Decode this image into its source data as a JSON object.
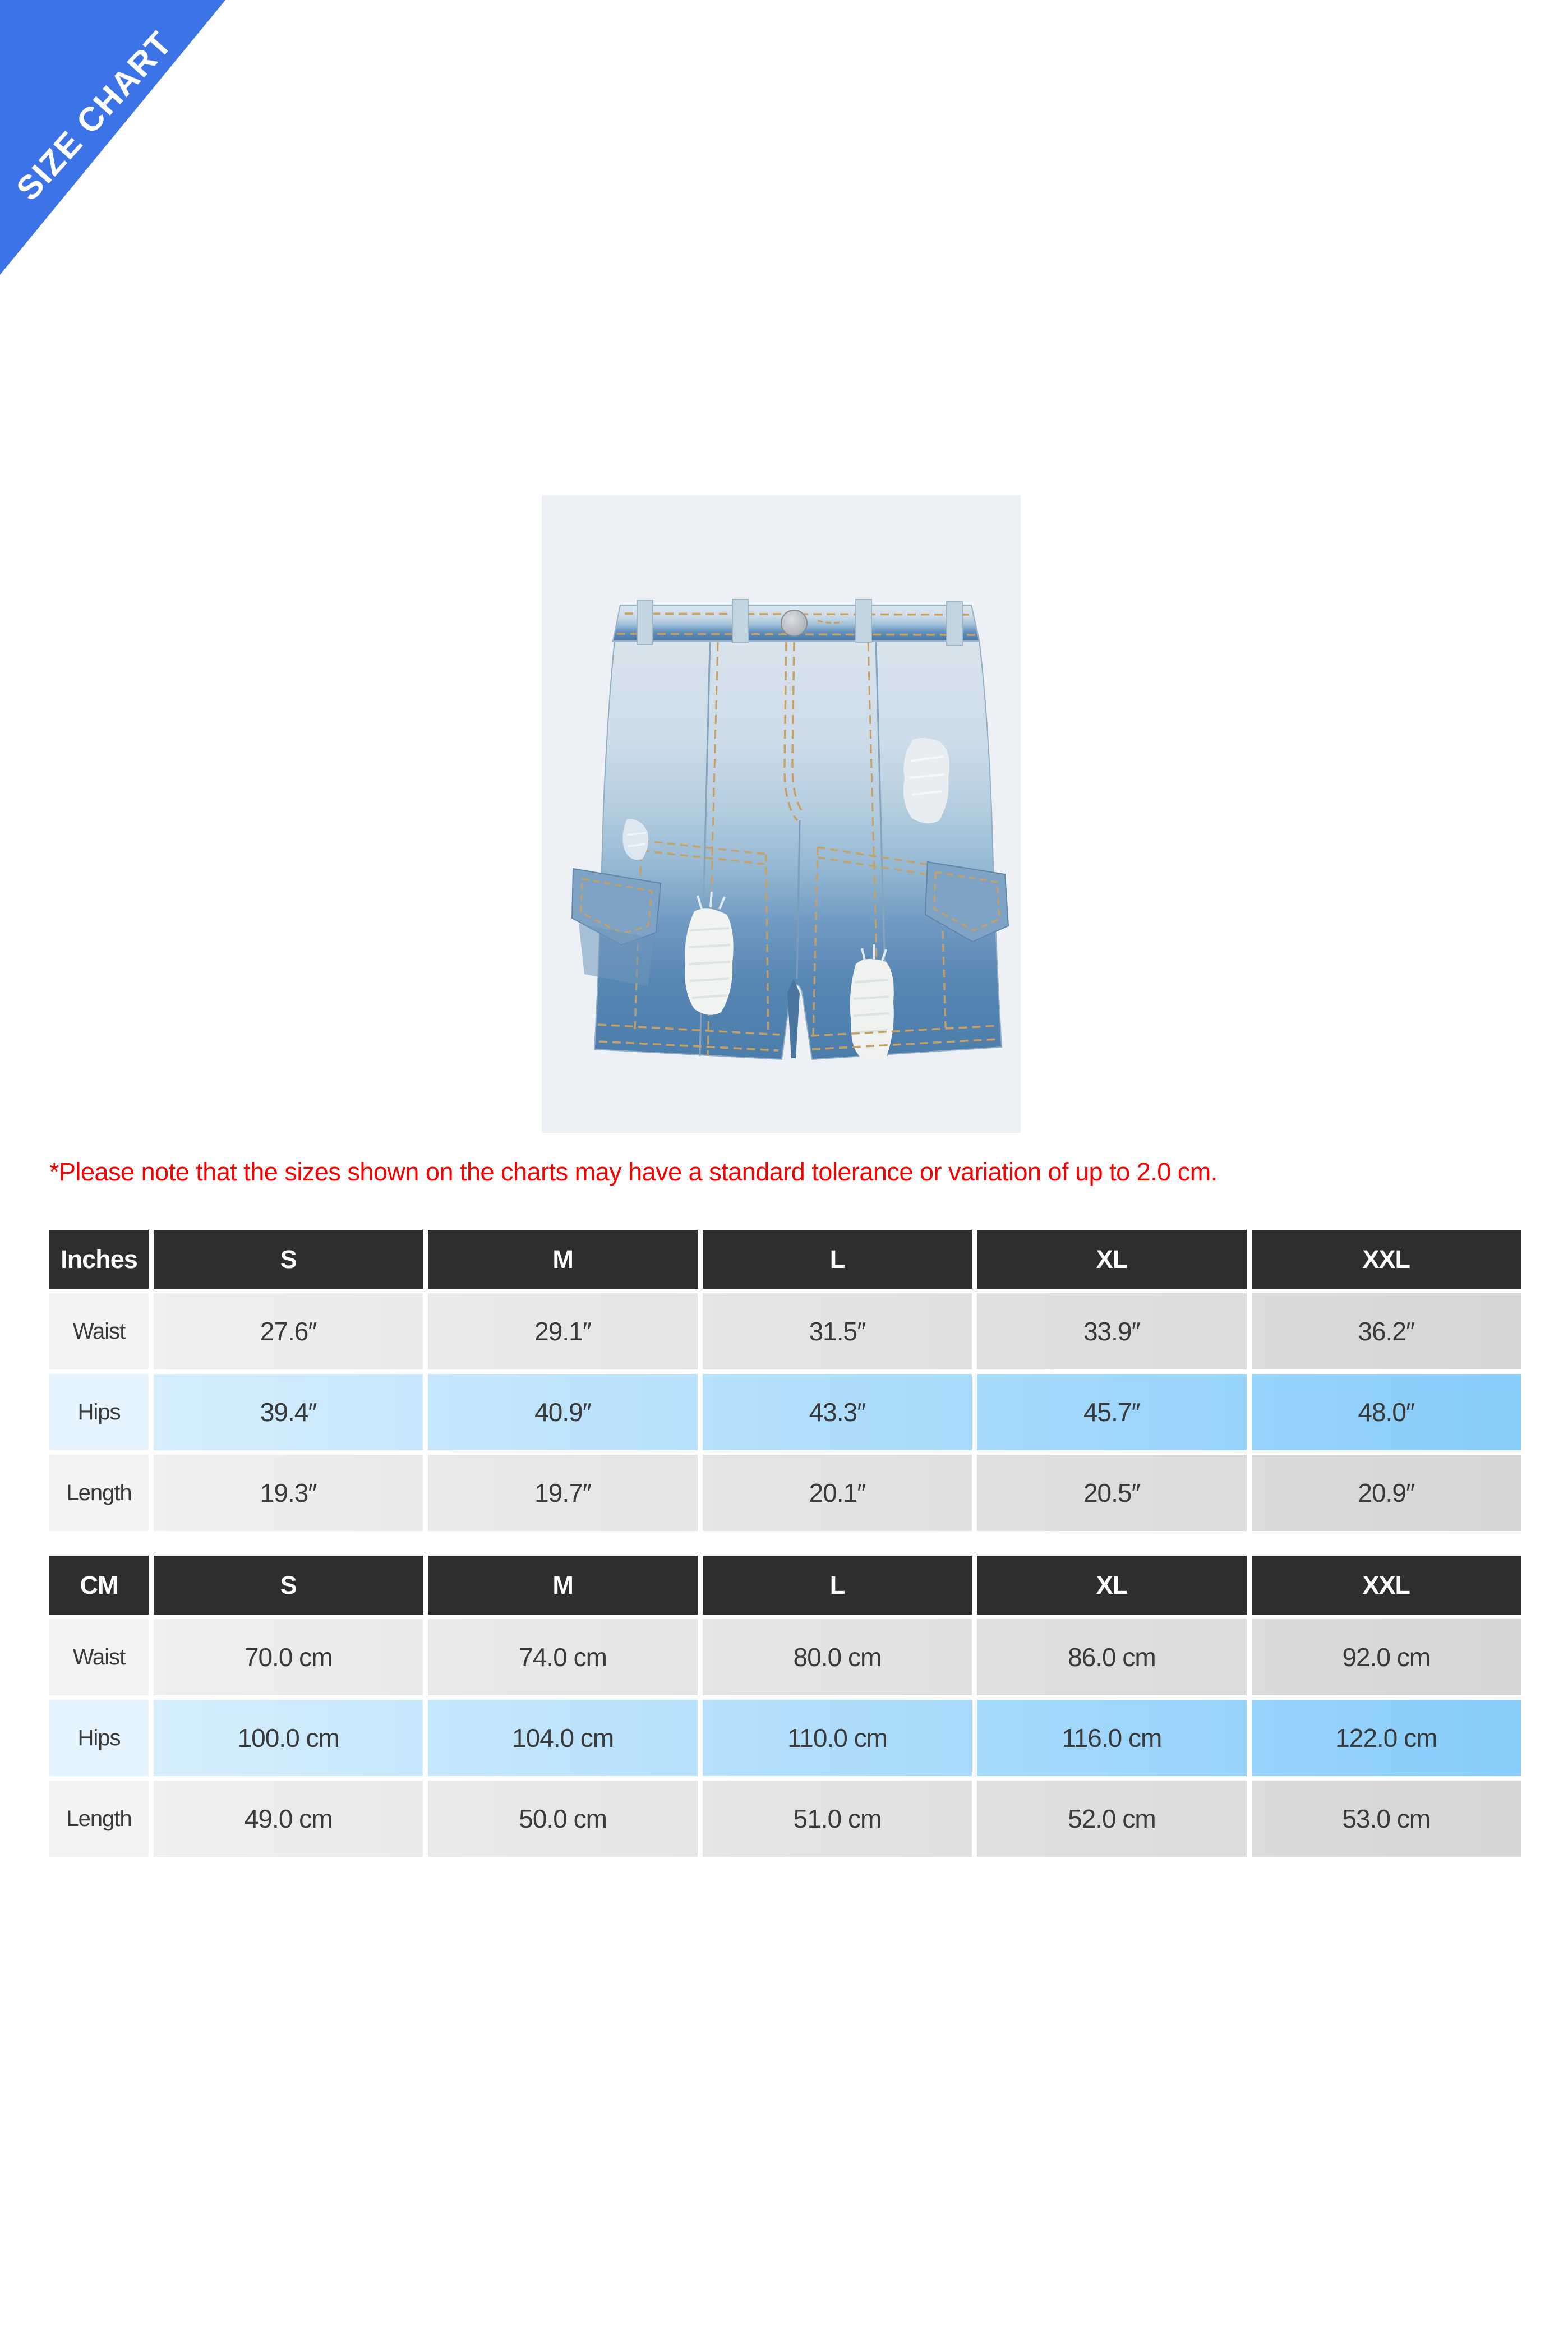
{
  "ribbon": {
    "label": "SIZE CHART"
  },
  "product_image": {
    "name": "distressed-denim-cargo-shorts-photo"
  },
  "note": {
    "text": "*Please note that the sizes shown on the charts may have a standard tolerance or variation of up to 2.0 cm."
  },
  "tables": [
    {
      "unit": "Inches",
      "columns": [
        "S",
        "M",
        "L",
        "XL",
        "XXL"
      ],
      "rows": [
        {
          "label": "Waist",
          "highlight": false,
          "values": [
            "27.6″",
            "29.1″",
            "31.5″",
            "33.9″",
            "36.2″"
          ]
        },
        {
          "label": "Hips",
          "highlight": true,
          "values": [
            "39.4″",
            "40.9″",
            "43.3″",
            "45.7″",
            "48.0″"
          ]
        },
        {
          "label": "Length",
          "highlight": false,
          "values": [
            "19.3″",
            "19.7″",
            "20.1″",
            "20.5″",
            "20.9″"
          ]
        }
      ]
    },
    {
      "unit": "CM",
      "columns": [
        "S",
        "M",
        "L",
        "XL",
        "XXL"
      ],
      "rows": [
        {
          "label": "Waist",
          "highlight": false,
          "values": [
            "70.0 cm",
            "74.0 cm",
            "80.0 cm",
            "86.0 cm",
            "92.0 cm"
          ]
        },
        {
          "label": "Hips",
          "highlight": true,
          "values": [
            "100.0 cm",
            "104.0 cm",
            "110.0 cm",
            "116.0 cm",
            "122.0 cm"
          ]
        },
        {
          "label": "Length",
          "highlight": false,
          "values": [
            "49.0 cm",
            "50.0 cm",
            "51.0 cm",
            "52.0 cm",
            "53.0 cm"
          ]
        }
      ]
    }
  ],
  "colors": {
    "ribbon_blue": "#3C73E6",
    "note_red": "#F70000",
    "header_dark": "#2E2E2E",
    "gray_label": "#F3F3F3",
    "gray_start": "#EFEFEF",
    "gray_end": "#D6D6D6",
    "blue_label": "#E4F3FD",
    "blue_start": "#D6EEFD",
    "blue_end": "#87CCFA",
    "photo_background": "#EDF1F5"
  }
}
